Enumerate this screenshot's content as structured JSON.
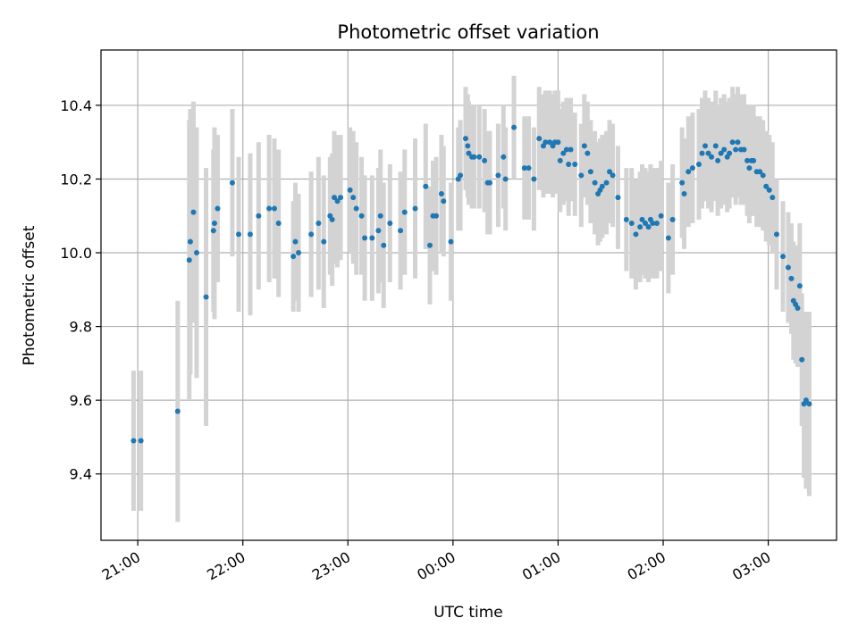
{
  "chart_data": {
    "type": "scatter",
    "title": "Photometric offset variation",
    "xlabel": "UTC time",
    "ylabel": "Photometric offset",
    "x_unit": "hours (UTC, 24 = 00:00 next day)",
    "xlim": [
      20.65,
      27.65
    ],
    "ylim": [
      9.22,
      10.55
    ],
    "grid": true,
    "x_ticks": [
      {
        "v": 21,
        "label": "21:00"
      },
      {
        "v": 22,
        "label": "22:00"
      },
      {
        "v": 23,
        "label": "23:00"
      },
      {
        "v": 24,
        "label": "00:00"
      },
      {
        "v": 25,
        "label": "01:00"
      },
      {
        "v": 26,
        "label": "02:00"
      },
      {
        "v": 27,
        "label": "03:00"
      }
    ],
    "y_ticks": [
      {
        "v": 9.4,
        "label": "9.4"
      },
      {
        "v": 9.6,
        "label": "9.6"
      },
      {
        "v": 9.8,
        "label": "9.8"
      },
      {
        "v": 10.0,
        "label": "10.0"
      },
      {
        "v": 10.2,
        "label": "10.2"
      },
      {
        "v": 10.4,
        "label": "10.4"
      }
    ],
    "colors": {
      "points": "#1f77b4",
      "errorbars": "#d3d3d3",
      "grid": "#b0b0b0"
    },
    "points": [
      [
        20.96,
        9.49,
        0.19
      ],
      [
        21.03,
        9.49,
        0.19
      ],
      [
        21.38,
        9.57,
        0.3
      ],
      [
        21.49,
        9.98,
        0.38
      ],
      [
        21.5,
        10.03,
        0.36
      ],
      [
        21.53,
        10.11,
        0.3
      ],
      [
        21.56,
        10.0,
        0.34
      ],
      [
        21.65,
        9.88,
        0.35
      ],
      [
        21.72,
        10.06,
        0.22
      ],
      [
        21.73,
        10.08,
        0.26
      ],
      [
        21.76,
        10.12,
        0.2
      ],
      [
        21.9,
        10.19,
        0.2
      ],
      [
        21.96,
        10.05,
        0.21
      ],
      [
        22.07,
        10.05,
        0.22
      ],
      [
        22.15,
        10.1,
        0.2
      ],
      [
        22.25,
        10.12,
        0.2
      ],
      [
        22.3,
        10.12,
        0.19
      ],
      [
        22.34,
        10.08,
        0.2
      ],
      [
        22.48,
        9.99,
        0.15
      ],
      [
        22.5,
        10.03,
        0.16
      ],
      [
        22.53,
        10.0,
        0.16
      ],
      [
        22.65,
        10.05,
        0.17
      ],
      [
        22.72,
        10.08,
        0.18
      ],
      [
        22.77,
        10.03,
        0.18
      ],
      [
        22.83,
        10.1,
        0.16
      ],
      [
        22.85,
        10.09,
        0.18
      ],
      [
        22.87,
        10.15,
        0.18
      ],
      [
        22.9,
        10.14,
        0.18
      ],
      [
        22.93,
        10.15,
        0.17
      ],
      [
        23.02,
        10.17,
        0.17
      ],
      [
        23.05,
        10.15,
        0.18
      ],
      [
        23.08,
        10.12,
        0.18
      ],
      [
        23.13,
        10.1,
        0.16
      ],
      [
        23.16,
        10.04,
        0.17
      ],
      [
        23.23,
        10.04,
        0.17
      ],
      [
        23.29,
        10.06,
        0.17
      ],
      [
        23.31,
        10.1,
        0.18
      ],
      [
        23.34,
        10.02,
        0.17
      ],
      [
        23.4,
        10.08,
        0.16
      ],
      [
        23.5,
        10.06,
        0.16
      ],
      [
        23.54,
        10.11,
        0.17
      ],
      [
        23.64,
        10.12,
        0.19
      ],
      [
        23.74,
        10.18,
        0.17
      ],
      [
        23.78,
        10.02,
        0.16
      ],
      [
        23.81,
        10.1,
        0.15
      ],
      [
        23.84,
        10.1,
        0.16
      ],
      [
        23.89,
        10.16,
        0.16
      ],
      [
        23.91,
        10.14,
        0.15
      ],
      [
        23.98,
        10.03,
        0.16
      ],
      [
        24.05,
        10.2,
        0.14
      ],
      [
        24.07,
        10.21,
        0.15
      ],
      [
        24.12,
        10.31,
        0.14
      ],
      [
        24.14,
        10.29,
        0.14
      ],
      [
        24.15,
        10.27,
        0.14
      ],
      [
        24.18,
        10.26,
        0.14
      ],
      [
        24.2,
        10.26,
        0.14
      ],
      [
        24.25,
        10.26,
        0.14
      ],
      [
        24.3,
        10.25,
        0.14
      ],
      [
        24.33,
        10.19,
        0.14
      ],
      [
        24.35,
        10.19,
        0.14
      ],
      [
        24.43,
        10.21,
        0.14
      ],
      [
        24.48,
        10.26,
        0.14
      ],
      [
        24.5,
        10.2,
        0.14
      ],
      [
        24.58,
        10.34,
        0.14
      ],
      [
        24.68,
        10.23,
        0.14
      ],
      [
        24.72,
        10.23,
        0.14
      ],
      [
        24.77,
        10.2,
        0.14
      ],
      [
        24.82,
        10.31,
        0.14
      ],
      [
        24.86,
        10.29,
        0.14
      ],
      [
        24.88,
        10.3,
        0.14
      ],
      [
        24.92,
        10.3,
        0.14
      ],
      [
        24.95,
        10.29,
        0.14
      ],
      [
        24.97,
        10.3,
        0.14
      ],
      [
        25.0,
        10.3,
        0.14
      ],
      [
        25.02,
        10.25,
        0.14
      ],
      [
        25.05,
        10.27,
        0.14
      ],
      [
        25.08,
        10.28,
        0.14
      ],
      [
        25.1,
        10.24,
        0.14
      ],
      [
        25.12,
        10.28,
        0.14
      ],
      [
        25.16,
        10.24,
        0.14
      ],
      [
        25.22,
        10.21,
        0.14
      ],
      [
        25.25,
        10.29,
        0.14
      ],
      [
        25.28,
        10.27,
        0.14
      ],
      [
        25.31,
        10.22,
        0.14
      ],
      [
        25.35,
        10.19,
        0.14
      ],
      [
        25.38,
        10.16,
        0.14
      ],
      [
        25.4,
        10.17,
        0.14
      ],
      [
        25.42,
        10.18,
        0.14
      ],
      [
        25.46,
        10.19,
        0.14
      ],
      [
        25.49,
        10.22,
        0.14
      ],
      [
        25.52,
        10.21,
        0.14
      ],
      [
        25.57,
        10.15,
        0.14
      ],
      [
        25.65,
        10.09,
        0.14
      ],
      [
        25.7,
        10.08,
        0.15
      ],
      [
        25.74,
        10.05,
        0.15
      ],
      [
        25.78,
        10.07,
        0.15
      ],
      [
        25.8,
        10.09,
        0.15
      ],
      [
        25.83,
        10.08,
        0.15
      ],
      [
        25.86,
        10.07,
        0.15
      ],
      [
        25.88,
        10.09,
        0.15
      ],
      [
        25.9,
        10.08,
        0.15
      ],
      [
        25.94,
        10.08,
        0.15
      ],
      [
        25.98,
        10.1,
        0.15
      ],
      [
        26.05,
        10.04,
        0.15
      ],
      [
        26.09,
        10.09,
        0.15
      ],
      [
        26.18,
        10.19,
        0.15
      ],
      [
        26.2,
        10.16,
        0.15
      ],
      [
        26.24,
        10.22,
        0.15
      ],
      [
        26.28,
        10.23,
        0.15
      ],
      [
        26.34,
        10.24,
        0.15
      ],
      [
        26.37,
        10.27,
        0.15
      ],
      [
        26.4,
        10.29,
        0.15
      ],
      [
        26.43,
        10.27,
        0.15
      ],
      [
        26.46,
        10.26,
        0.15
      ],
      [
        26.5,
        10.29,
        0.15
      ],
      [
        26.52,
        10.25,
        0.15
      ],
      [
        26.55,
        10.27,
        0.15
      ],
      [
        26.58,
        10.28,
        0.15
      ],
      [
        26.61,
        10.26,
        0.15
      ],
      [
        26.63,
        10.27,
        0.15
      ],
      [
        26.66,
        10.3,
        0.15
      ],
      [
        26.69,
        10.28,
        0.15
      ],
      [
        26.71,
        10.3,
        0.15
      ],
      [
        26.74,
        10.28,
        0.15
      ],
      [
        26.77,
        10.28,
        0.15
      ],
      [
        26.8,
        10.25,
        0.15
      ],
      [
        26.82,
        10.23,
        0.15
      ],
      [
        26.84,
        10.25,
        0.15
      ],
      [
        26.86,
        10.25,
        0.15
      ],
      [
        26.89,
        10.22,
        0.15
      ],
      [
        26.92,
        10.22,
        0.15
      ],
      [
        26.95,
        10.21,
        0.15
      ],
      [
        26.98,
        10.18,
        0.15
      ],
      [
        27.01,
        10.17,
        0.15
      ],
      [
        27.04,
        10.15,
        0.15
      ],
      [
        27.08,
        10.05,
        0.15
      ],
      [
        27.14,
        9.99,
        0.15
      ],
      [
        27.19,
        9.96,
        0.15
      ],
      [
        27.22,
        9.93,
        0.15
      ],
      [
        27.24,
        9.87,
        0.16
      ],
      [
        27.26,
        9.86,
        0.16
      ],
      [
        27.28,
        9.85,
        0.16
      ],
      [
        27.3,
        9.91,
        0.17
      ],
      [
        27.32,
        9.71,
        0.18
      ],
      [
        27.34,
        9.59,
        0.2
      ],
      [
        27.36,
        9.6,
        0.24
      ],
      [
        27.39,
        9.59,
        0.25
      ]
    ]
  }
}
